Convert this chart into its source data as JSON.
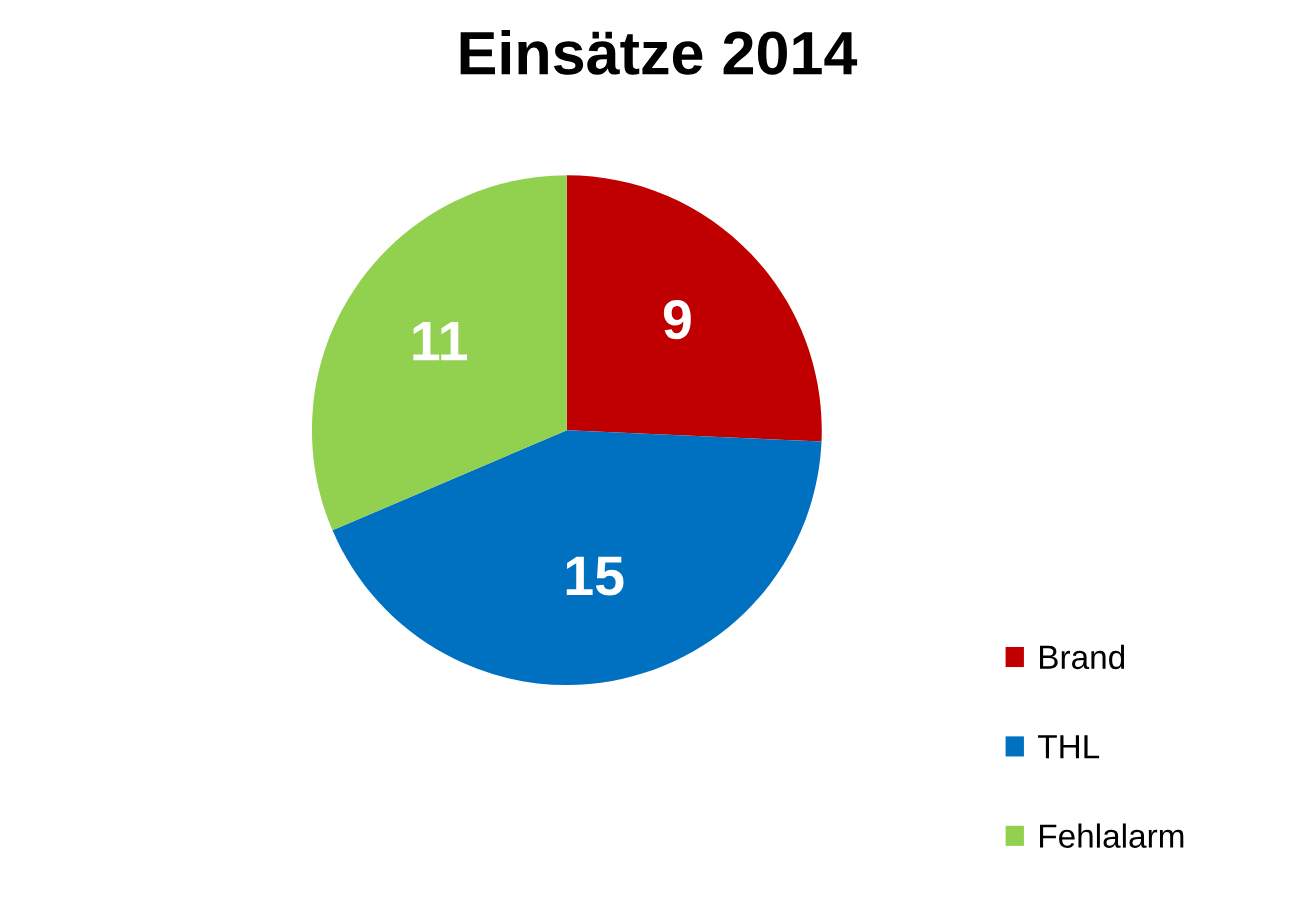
{
  "chart_data": {
    "type": "pie",
    "title": "Einsätze 2014",
    "categories": [
      "Brand",
      "THL",
      "Fehlalarm"
    ],
    "values": [
      9,
      15,
      11
    ],
    "colors": [
      "#c00000",
      "#0070c0",
      "#92d050"
    ],
    "data_labels": true,
    "legend": "bottom right"
  }
}
